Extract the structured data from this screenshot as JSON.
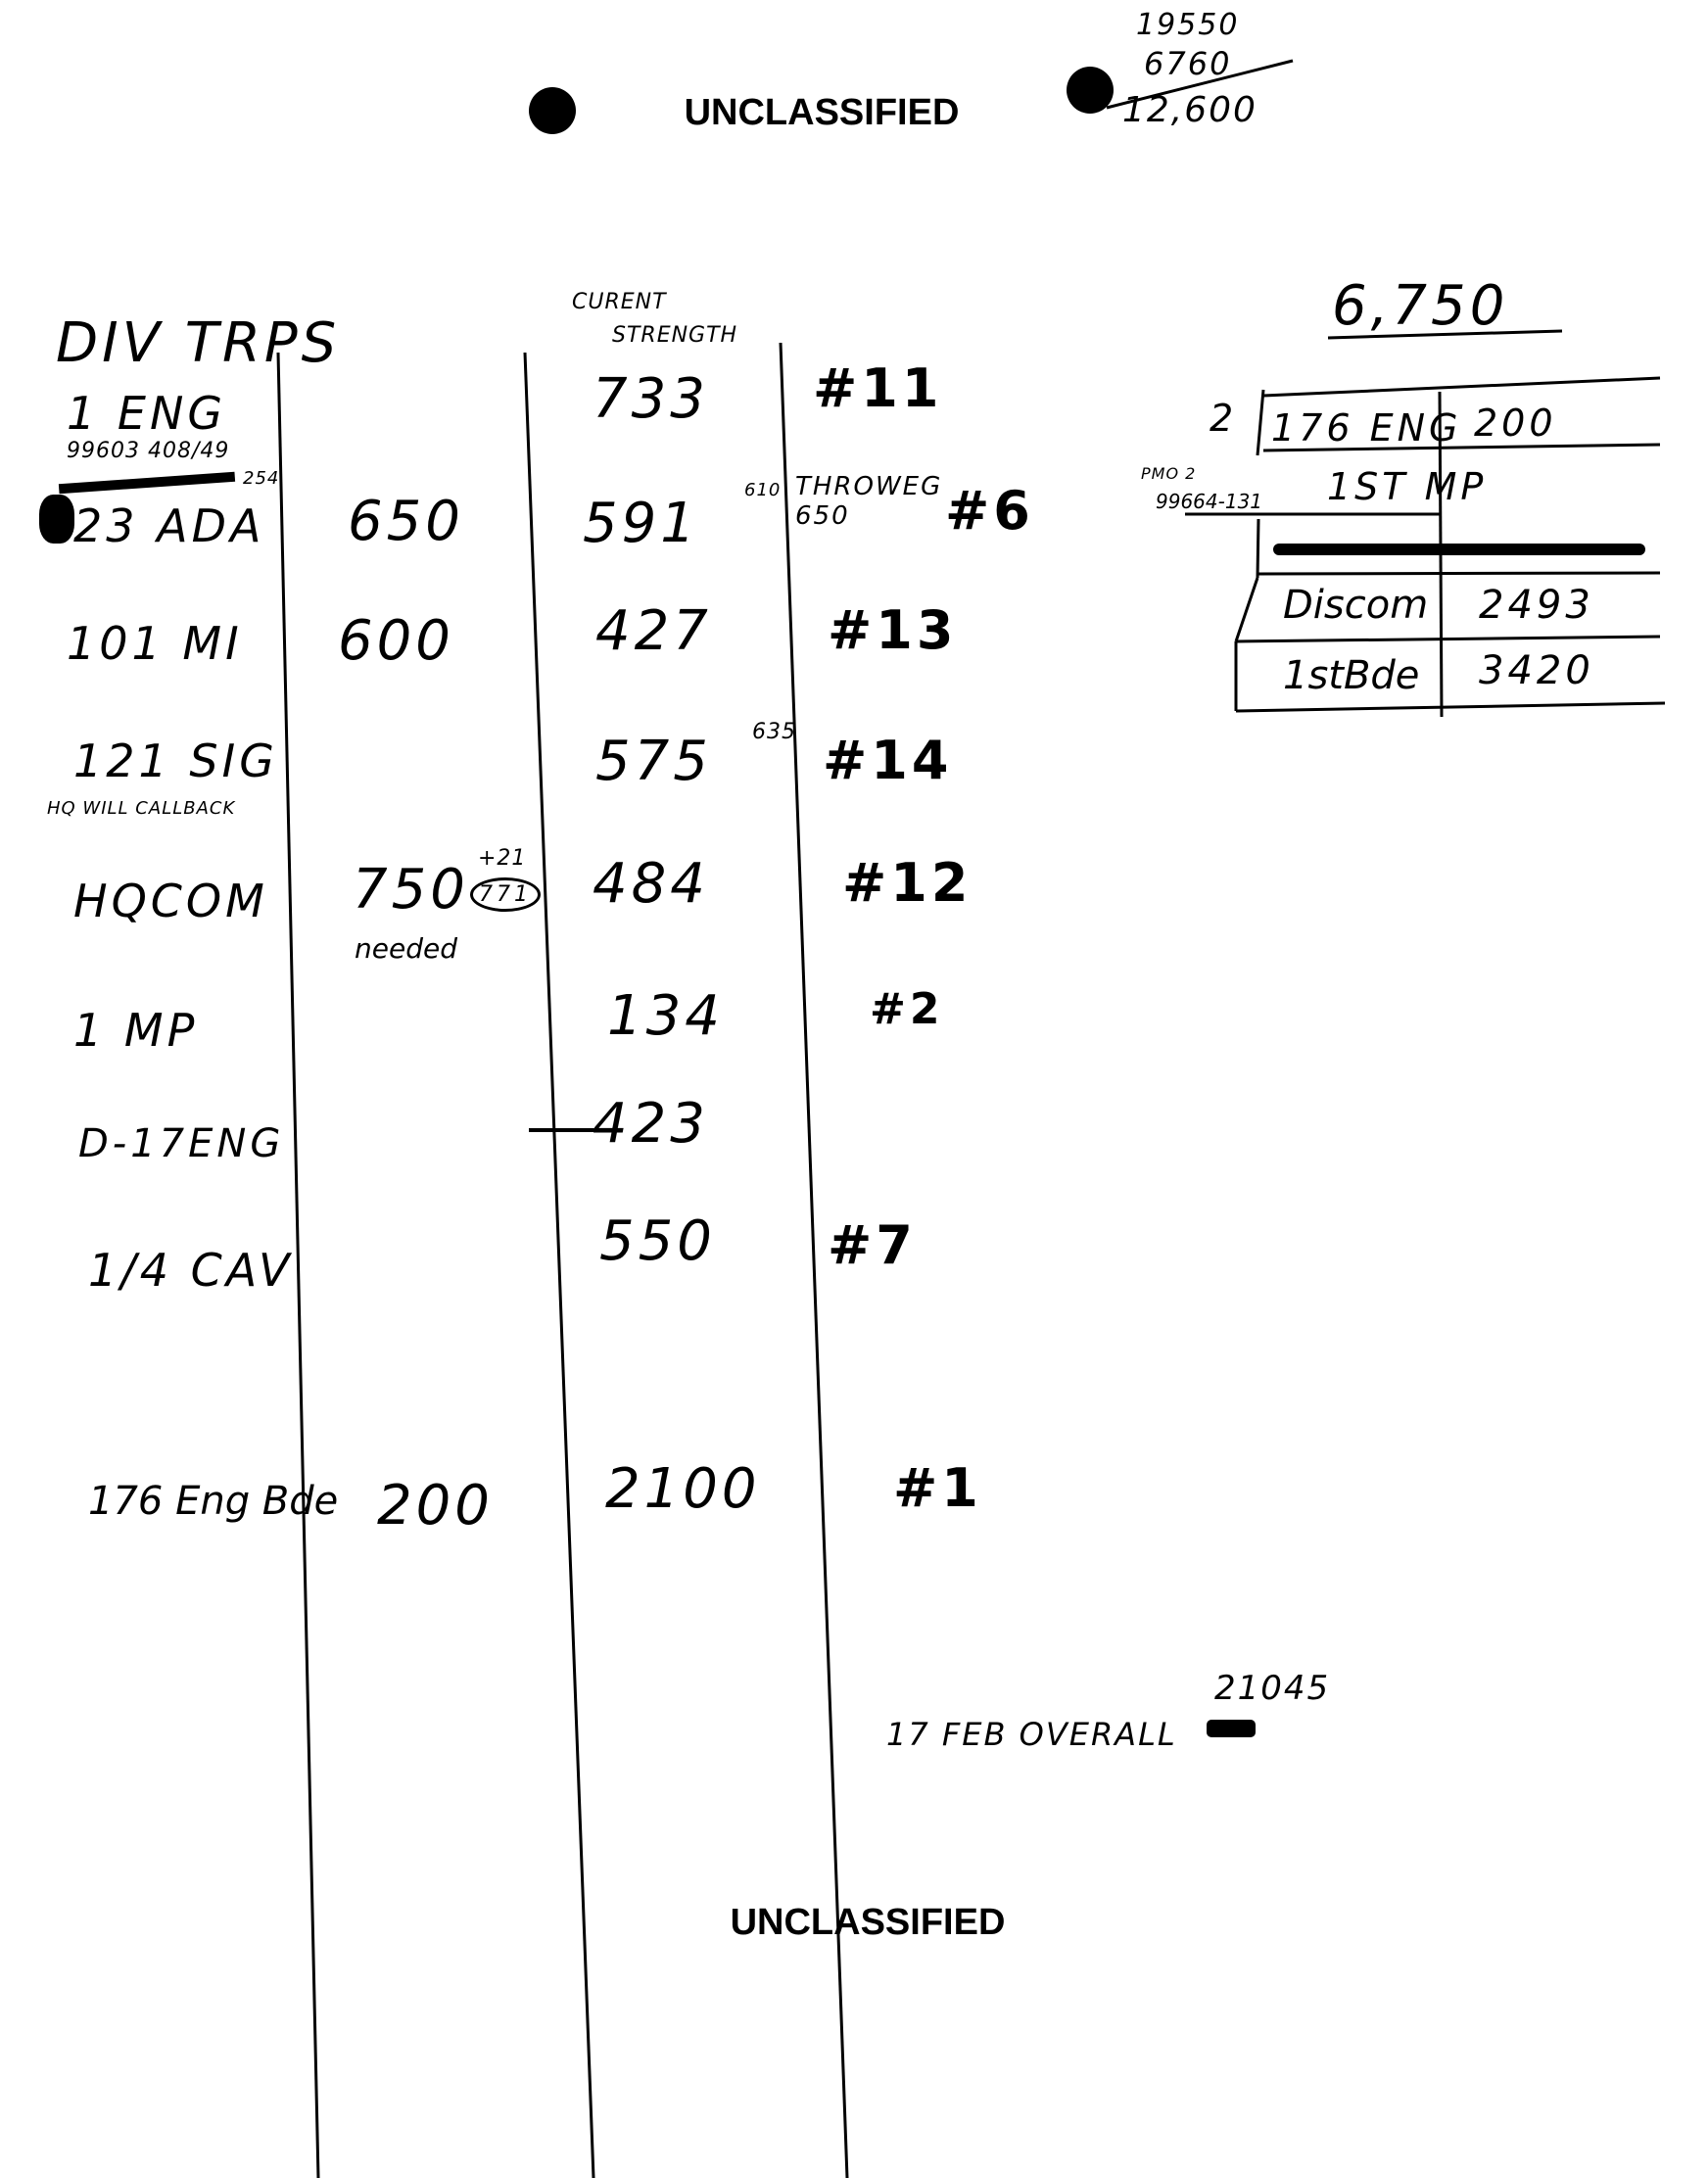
{
  "header": {
    "classification": "UNCLASSIFIED",
    "margin_calc": [
      "19550",
      "6760",
      "12,600"
    ]
  },
  "main_table": {
    "title": "DIV TRPS",
    "strength_header": [
      "CURENT",
      "STRENGTH"
    ],
    "rows": [
      {
        "unit": "1 ENG",
        "unit_note": "99603 408/49",
        "needed": "",
        "current": "733",
        "current_note": "",
        "side_note": "",
        "rank": "#11"
      },
      {
        "unit": "23 ADA",
        "unit_note": "254",
        "needed": "650",
        "current": "591",
        "current_note": "610",
        "side_note": "THROWEG 650",
        "rank": "#6"
      },
      {
        "unit": "101 MI",
        "unit_note": "",
        "needed": "600",
        "current": "427",
        "current_note": "",
        "side_note": "",
        "rank": "#13"
      },
      {
        "unit": "121 SIG",
        "unit_note": "HQ WILL CALLBACK",
        "needed": "",
        "current": "575",
        "current_note": "635",
        "side_note": "",
        "rank": "#14"
      },
      {
        "unit": "HQCOM",
        "unit_note": "",
        "needed": "750",
        "needed_add": "+21",
        "needed_total": "771",
        "needed_label": "needed",
        "current": "484",
        "current_note": "",
        "side_note": "",
        "rank": "#12"
      },
      {
        "unit": "1 MP",
        "unit_note": "",
        "needed": "",
        "current": "134",
        "current_note": "",
        "side_note": "",
        "rank": "#2"
      },
      {
        "unit": "D-17ENG",
        "unit_note": "",
        "needed": "",
        "current": "423",
        "current_note": "",
        "side_note": "",
        "rank": ""
      },
      {
        "unit": "1/4 CAV",
        "unit_note": "",
        "needed": "",
        "current": "550",
        "current_note": "",
        "side_note": "",
        "rank": "#7"
      },
      {
        "unit": "176 Eng Bde",
        "unit_note": "",
        "needed": "200",
        "current": "2100",
        "current_note": "",
        "side_note": "",
        "rank": "#1"
      }
    ]
  },
  "side_table": {
    "total": "6,750",
    "marker": "2",
    "note_top": "PMO 2",
    "note_bottom": "99664-131",
    "rows": [
      {
        "unit": "176 ENG",
        "value": "200"
      },
      {
        "unit": "1ST MP",
        "value": ""
      },
      {
        "unit": "",
        "value": ""
      },
      {
        "unit": "Discom",
        "value": "2493"
      },
      {
        "unit": "1stBde",
        "value": "3420"
      }
    ]
  },
  "footer_note": {
    "label": "17 FEB OVERALL",
    "value": "21045"
  },
  "footer": {
    "classification": "UNCLASSIFIED"
  }
}
